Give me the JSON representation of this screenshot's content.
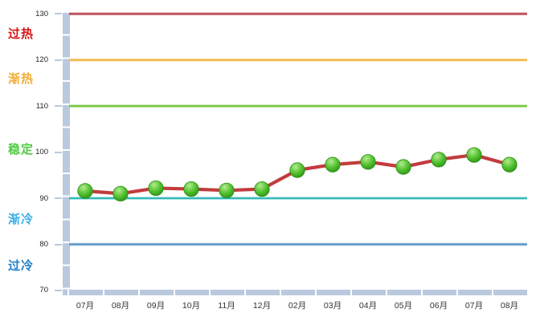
{
  "chart_data": {
    "type": "line",
    "x": [
      "07月",
      "08月",
      "09月",
      "10月",
      "11月",
      "12月",
      "02月",
      "03月",
      "04月",
      "05月",
      "06月",
      "07月",
      "08月"
    ],
    "series": [
      {
        "values": [
          91.6,
          91.0,
          92.2,
          92.0,
          91.7,
          92.0,
          96.1,
          97.3,
          97.9,
          96.8,
          98.4,
          99.4,
          97.3
        ]
      }
    ],
    "ylim": [
      70,
      130
    ],
    "y_ticks": [
      130,
      120,
      110,
      100,
      90,
      80,
      70
    ],
    "grid": "off",
    "legend": "none",
    "zone_boundary_lines": [
      {
        "value": 130,
        "color": "#b23742"
      },
      {
        "value": 120,
        "color": "#f2b43e"
      },
      {
        "value": 110,
        "color": "#6cc434"
      },
      {
        "value": 90,
        "color": "#2db9b9"
      },
      {
        "value": 80,
        "color": "#4e90c2"
      }
    ],
    "zones": [
      {
        "label": "过热",
        "color": "#d61515",
        "center_value": 126.0
      },
      {
        "label": "渐热",
        "color": "#f2ad33",
        "center_value": 116.3
      },
      {
        "label": "稳定",
        "color": "#4fcb3e",
        "center_value": 101.0
      },
      {
        "label": "渐冷",
        "color": "#3caee8",
        "center_value": 85.8
      },
      {
        "label": "过冷",
        "color": "#1e7ec8",
        "center_value": 75.8
      }
    ],
    "series_line_color": "#c33b3e",
    "marker_fill_light": "#b2ec8e",
    "marker_fill_mid": "#52c030",
    "marker_fill_dark": "#2b9212",
    "marker_stroke": "#279010",
    "axis_bar_color": "#bac9dd",
    "tick_label_color": "#222222",
    "x_label_color": "#333333"
  }
}
